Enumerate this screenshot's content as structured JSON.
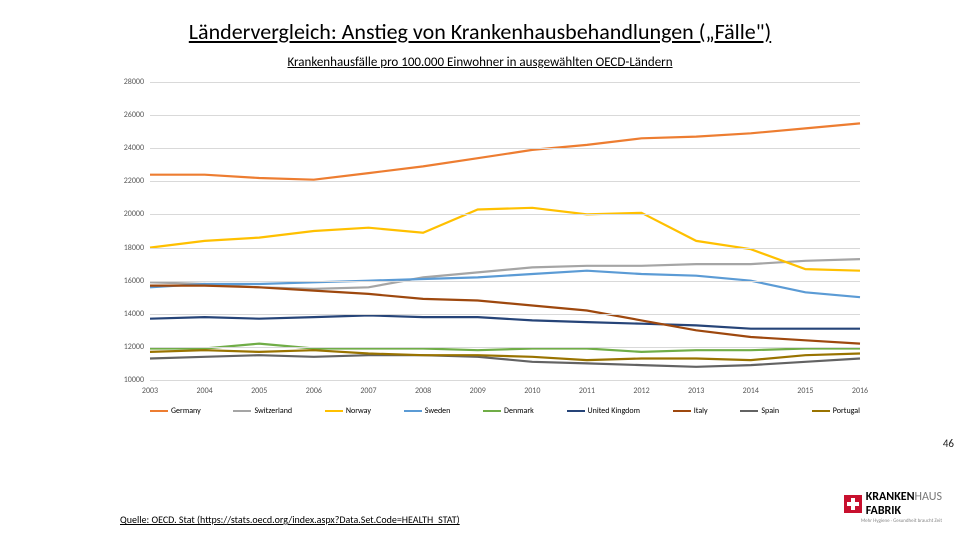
{
  "title": "Ländervergleich: Anstieg von Krankenhausbehandlungen („Fälle\")",
  "subtitle": "Krankenhausfälle pro 100.000 Einwohner in ausgewählten OECD-Ländern",
  "source": "Quelle: OECD. Stat (https://stats.oecd.org/index.aspx?Data.Set.Code=HEALTH_STAT)",
  "page_number": "46",
  "logo": {
    "word1": "KRANKEN",
    "word2": "FABRIK",
    "tag": "Mehr Hygiene · Gesundheit braucht Zeit"
  },
  "chart": {
    "type": "line",
    "background_color": "#ffffff",
    "grid_color": "#d9d9d9",
    "line_width": 2.2,
    "label_fontsize": 8,
    "label_color": "#595959",
    "ylim": [
      10000,
      28000
    ],
    "ytick_step": 2000,
    "xvalues": [
      2003,
      2004,
      2005,
      2006,
      2007,
      2008,
      2009,
      2010,
      2011,
      2012,
      2013,
      2014,
      2015,
      2016
    ],
    "series": [
      {
        "name": "Germany",
        "color": "#ed7d31",
        "values": [
          22400,
          22400,
          22200,
          22100,
          22500,
          22900,
          23400,
          23900,
          24200,
          24600,
          24700,
          24900,
          25200,
          25500
        ]
      },
      {
        "name": "Switzerland",
        "color": "#a5a5a5",
        "values": [
          15900,
          15800,
          15600,
          15500,
          15600,
          16200,
          16500,
          16800,
          16900,
          16900,
          17000,
          17000,
          17200,
          17300
        ]
      },
      {
        "name": "Norway",
        "color": "#ffc000",
        "values": [
          18000,
          18400,
          18600,
          19000,
          19200,
          18900,
          20300,
          20400,
          20000,
          20100,
          18400,
          17900,
          16700,
          16600
        ]
      },
      {
        "name": "Sweden",
        "color": "#5b9bd5",
        "values": [
          15600,
          15800,
          15800,
          15900,
          16000,
          16100,
          16200,
          16400,
          16600,
          16400,
          16300,
          16000,
          15300,
          15000
        ]
      },
      {
        "name": "Denmark",
        "color": "#70ad47",
        "values": [
          11900,
          11900,
          12200,
          11900,
          11900,
          11900,
          11800,
          11900,
          11900,
          11700,
          11800,
          11800,
          11900,
          11900
        ]
      },
      {
        "name": "United Kingdom",
        "color": "#264478",
        "values": [
          13700,
          13800,
          13700,
          13800,
          13900,
          13800,
          13800,
          13600,
          13500,
          13400,
          13300,
          13100,
          13100,
          13100
        ]
      },
      {
        "name": "Italy",
        "color": "#9e480e",
        "values": [
          15700,
          15700,
          15600,
          15400,
          15200,
          14900,
          14800,
          14500,
          14200,
          13600,
          13000,
          12600,
          12400,
          12200
        ]
      },
      {
        "name": "Spain",
        "color": "#636363",
        "values": [
          11300,
          11400,
          11500,
          11400,
          11500,
          11500,
          11400,
          11100,
          11000,
          10900,
          10800,
          10900,
          11100,
          11300
        ]
      },
      {
        "name": "Portugal",
        "color": "#997300",
        "values": [
          11700,
          11800,
          11700,
          11800,
          11600,
          11500,
          11500,
          11400,
          11200,
          11300,
          11300,
          11200,
          11500,
          11600
        ]
      }
    ]
  }
}
